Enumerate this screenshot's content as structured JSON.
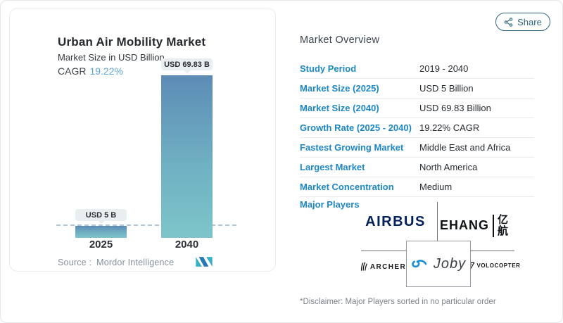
{
  "colors": {
    "label_blue": "#1d87c4",
    "cagr_blue": "#61a6d0",
    "bar_gradient_top": "#5d8cb6",
    "bar_gradient_bottom": "#7dc5ca",
    "share_teal": "#33667e",
    "airbus_navy": "#00205b",
    "joby_blue": "#1c8fd4"
  },
  "share": {
    "label": "Share",
    "icon": "share-nodes"
  },
  "chart_card": {
    "title": "Urban Air Mobility Market",
    "subtitle": "Market Size in USD Billion",
    "cagr_label": "CAGR",
    "cagr_value": "19.22%",
    "source_label": "Source :",
    "source_value": "Mordor Intelligence",
    "logo": "mordor-intelligence-mark"
  },
  "chart_data": {
    "type": "bar",
    "categories": [
      "2025",
      "2040"
    ],
    "values": [
      5,
      69.83
    ],
    "bar_labels": [
      "USD 5 B",
      "USD 69.83 B"
    ],
    "title": "Urban Air Mobility Market",
    "ylabel": "Market Size in USD Billion",
    "cagr": "19.22%",
    "baseline_at_value": 5,
    "ylim": [
      0,
      69.83
    ],
    "grid": false,
    "legend": "none"
  },
  "overview": {
    "heading": "Market Overview",
    "rows": [
      {
        "label": "Study Period",
        "value": "2019 - 2040"
      },
      {
        "label": "Market Size (2025)",
        "value": "USD 5 Billion"
      },
      {
        "label": "Market Size (2040)",
        "value": "USD 69.83 Billion"
      },
      {
        "label": "Growth Rate (2025 - 2040)",
        "value": "19.22% CAGR"
      },
      {
        "label": "Fastest Growing Market",
        "value": "Middle East and Africa"
      },
      {
        "label": "Largest Market",
        "value": "North America"
      },
      {
        "label": "Market Concentration",
        "value": "Medium"
      }
    ],
    "major_players_label": "Major Players",
    "players": {
      "airbus": "AIRBUS",
      "ehang_latin": "EHANG",
      "ehang_cjk": "亿航",
      "archer": "ARCHER",
      "joby": "Joby",
      "volocopter": "VOLOCOPTER"
    },
    "disclaimer": "*Disclaimer: Major Players sorted in no particular order"
  }
}
